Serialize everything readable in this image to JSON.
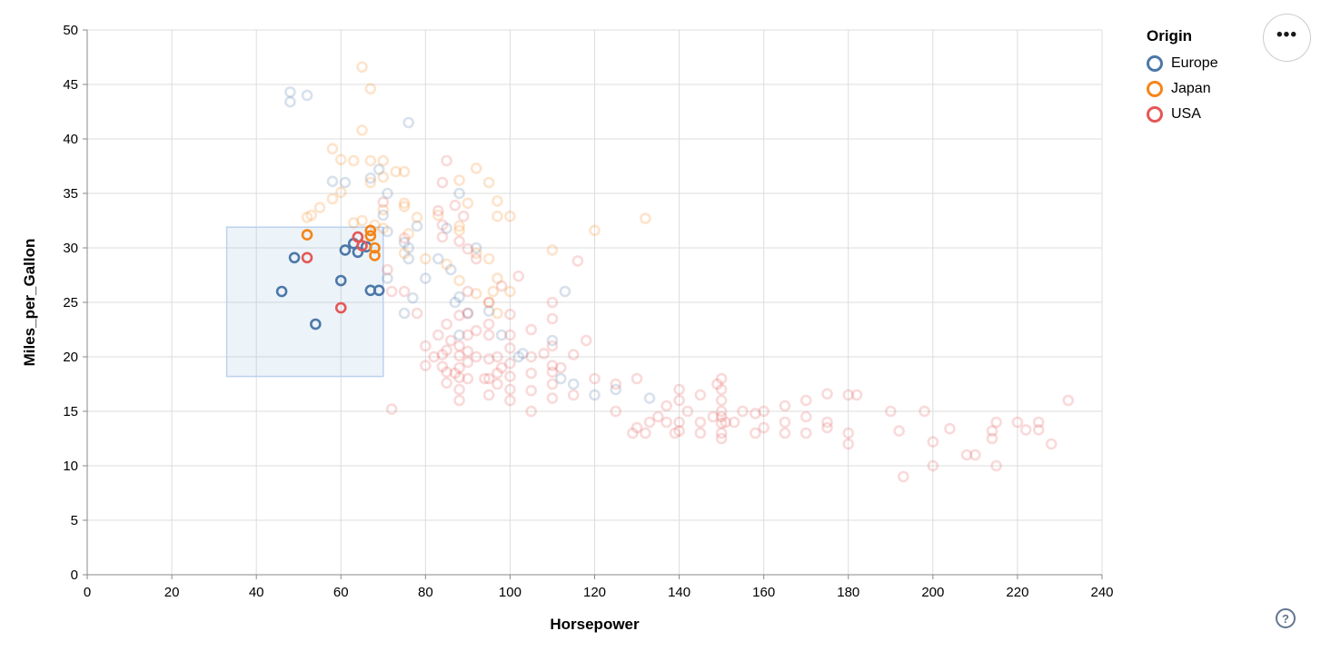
{
  "legend": {
    "title": "Origin",
    "items": [
      {
        "label": "Europe",
        "color": "#4c78a8"
      },
      {
        "label": "Japan",
        "color": "#f58518"
      },
      {
        "label": "USA",
        "color": "#e45756"
      }
    ]
  },
  "menu_button": {
    "icon": "ellipsis-icon",
    "glyph": "•••"
  },
  "help_button": {
    "icon": "question-mark-icon",
    "glyph": "?"
  },
  "chart_data": {
    "type": "scatter",
    "title": "",
    "xlabel": "Horsepower",
    "ylabel": "Miles_per_Gallon",
    "xlim": [
      0,
      240
    ],
    "ylim": [
      0,
      50
    ],
    "x_ticks": [
      0,
      20,
      40,
      60,
      80,
      100,
      120,
      140,
      160,
      180,
      200,
      220,
      240
    ],
    "y_ticks": [
      0,
      5,
      10,
      15,
      20,
      25,
      30,
      35,
      40,
      45,
      50
    ],
    "grid": true,
    "legend_position": "right",
    "point_style": {
      "shape": "open-circle",
      "radius": 5,
      "stroke_width": 2.6,
      "unselected_opacity": 0.22
    },
    "colors": {
      "Europe": "#4c78a8",
      "Japan": "#f58518",
      "USA": "#e45756",
      "grid": "#dddddd",
      "axis": "#888888"
    },
    "brush_selection": {
      "x": [
        33,
        70
      ],
      "y": [
        18.2,
        31.9
      ],
      "fill": "#6e9fd4",
      "fill_opacity": 0.13,
      "stroke": "#bdd1ee"
    },
    "series": [
      {
        "name": "Europe",
        "selected": [
          [
            46,
            26
          ],
          [
            49,
            29.1
          ],
          [
            54,
            23
          ],
          [
            60,
            27
          ],
          [
            61,
            29.8
          ],
          [
            63,
            30.4
          ],
          [
            64,
            29.6
          ],
          [
            66,
            30.1
          ],
          [
            67,
            26.1
          ],
          [
            69,
            26.1
          ]
        ],
        "unselected": [
          [
            48,
            43.4
          ],
          [
            48,
            44.3
          ],
          [
            52,
            44
          ],
          [
            76,
            41.5
          ],
          [
            58,
            36.1
          ],
          [
            61,
            36
          ],
          [
            67,
            36.4
          ],
          [
            69,
            37.2
          ],
          [
            71,
            35
          ],
          [
            88,
            35
          ],
          [
            70,
            33
          ],
          [
            71,
            31.5
          ],
          [
            75,
            30.5
          ],
          [
            76,
            30
          ],
          [
            78,
            32
          ],
          [
            83,
            29
          ],
          [
            80,
            27.2
          ],
          [
            87,
            25
          ],
          [
            88,
            25.5
          ],
          [
            71,
            27.2
          ],
          [
            75,
            24
          ],
          [
            90,
            24
          ],
          [
            86,
            28
          ],
          [
            113,
            26
          ],
          [
            98,
            22
          ],
          [
            102,
            20
          ],
          [
            112,
            18
          ],
          [
            115,
            17.5
          ],
          [
            125,
            17
          ],
          [
            120,
            16.5
          ],
          [
            133,
            16.2
          ],
          [
            103,
            20.3
          ],
          [
            110,
            21.5
          ],
          [
            77,
            25.4
          ],
          [
            88,
            22
          ],
          [
            92,
            30
          ],
          [
            85,
            31.8
          ],
          [
            95,
            24.2
          ],
          [
            76,
            29
          ]
        ]
      },
      {
        "name": "Japan",
        "selected": [
          [
            52,
            31.2
          ],
          [
            67,
            31.6
          ],
          [
            67,
            31.1
          ],
          [
            68,
            30
          ],
          [
            68,
            29.3
          ]
        ],
        "unselected": [
          [
            65,
            46.6
          ],
          [
            67,
            44.6
          ],
          [
            65,
            40.8
          ],
          [
            58,
            39.1
          ],
          [
            60,
            38.1
          ],
          [
            63,
            38
          ],
          [
            67,
            38
          ],
          [
            70,
            38
          ],
          [
            60,
            35.1
          ],
          [
            67,
            36
          ],
          [
            70,
            36.5
          ],
          [
            73,
            37
          ],
          [
            75,
            37
          ],
          [
            88,
            36.2
          ],
          [
            92,
            37.3
          ],
          [
            52,
            32.8
          ],
          [
            53,
            33
          ],
          [
            55,
            33.7
          ],
          [
            58,
            34.5
          ],
          [
            63,
            32.3
          ],
          [
            65,
            32.5
          ],
          [
            68,
            32.1
          ],
          [
            70,
            31.8
          ],
          [
            70,
            33.5
          ],
          [
            75,
            33.8
          ],
          [
            75,
            34.1
          ],
          [
            78,
            32.8
          ],
          [
            76,
            31.3
          ],
          [
            83,
            33
          ],
          [
            88,
            32
          ],
          [
            95,
            36
          ],
          [
            97,
            34.3
          ],
          [
            90,
            34.1
          ],
          [
            97,
            32.9
          ],
          [
            100,
            32.9
          ],
          [
            88,
            31.6
          ],
          [
            92,
            29.5
          ],
          [
            95,
            29
          ],
          [
            97,
            27.2
          ],
          [
            95,
            25
          ],
          [
            97,
            24
          ],
          [
            100,
            26
          ],
          [
            110,
            29.8
          ],
          [
            120,
            31.6
          ],
          [
            132,
            32.7
          ],
          [
            96,
            26
          ],
          [
            88,
            27
          ],
          [
            92,
            25.8
          ],
          [
            75,
            29.5
          ],
          [
            80,
            29
          ],
          [
            85,
            28.5
          ]
        ]
      },
      {
        "name": "USA",
        "selected": [
          [
            52,
            29.1
          ],
          [
            60,
            24.5
          ],
          [
            64,
            31
          ],
          [
            65,
            30.2
          ]
        ],
        "unselected": [
          [
            70,
            34.2
          ],
          [
            75,
            30.9
          ],
          [
            84,
            31
          ],
          [
            88,
            30.6
          ],
          [
            90,
            29.9
          ],
          [
            92,
            29
          ],
          [
            71,
            28
          ],
          [
            72,
            26
          ],
          [
            75,
            26
          ],
          [
            72,
            15.2
          ],
          [
            85,
            38
          ],
          [
            84,
            36
          ],
          [
            87,
            33.9
          ],
          [
            89,
            32.9
          ],
          [
            83,
            33.4
          ],
          [
            84,
            32.1
          ],
          [
            116,
            28.8
          ],
          [
            78,
            24
          ],
          [
            80,
            19.2
          ],
          [
            80,
            21
          ],
          [
            82,
            20
          ],
          [
            83,
            22
          ],
          [
            84,
            20.2
          ],
          [
            84,
            19.1
          ],
          [
            85,
            17.6
          ],
          [
            85,
            18.6
          ],
          [
            85,
            20.6
          ],
          [
            85,
            23
          ],
          [
            86,
            21.5
          ],
          [
            87,
            18.5
          ],
          [
            88,
            16
          ],
          [
            88,
            17
          ],
          [
            88,
            18.1
          ],
          [
            88,
            19
          ],
          [
            88,
            20.1
          ],
          [
            88,
            21
          ],
          [
            88,
            23.8
          ],
          [
            90,
            18
          ],
          [
            90,
            19.5
          ],
          [
            90,
            20.5
          ],
          [
            90,
            22
          ],
          [
            90,
            24
          ],
          [
            90,
            26
          ],
          [
            92,
            20
          ],
          [
            92,
            22.4
          ],
          [
            94,
            18
          ],
          [
            95,
            16.5
          ],
          [
            95,
            18
          ],
          [
            95,
            19.8
          ],
          [
            95,
            22
          ],
          [
            95,
            23
          ],
          [
            95,
            25
          ],
          [
            97,
            17.5
          ],
          [
            97,
            18.5
          ],
          [
            97,
            20
          ],
          [
            98,
            19
          ],
          [
            98,
            26.5
          ],
          [
            100,
            16
          ],
          [
            100,
            17
          ],
          [
            100,
            18.2
          ],
          [
            100,
            19.4
          ],
          [
            100,
            20.8
          ],
          [
            100,
            22
          ],
          [
            100,
            23.9
          ],
          [
            102,
            27.4
          ],
          [
            105,
            15
          ],
          [
            105,
            16.9
          ],
          [
            105,
            18.5
          ],
          [
            105,
            20
          ],
          [
            105,
            22.5
          ],
          [
            110,
            25
          ],
          [
            108,
            20.3
          ],
          [
            110,
            16.2
          ],
          [
            110,
            17.5
          ],
          [
            110,
            18.6
          ],
          [
            110,
            19.2
          ],
          [
            110,
            21
          ],
          [
            110,
            23.5
          ],
          [
            112,
            19
          ],
          [
            115,
            16.5
          ],
          [
            115,
            20.2
          ],
          [
            120,
            18
          ],
          [
            118,
            21.5
          ],
          [
            125,
            15
          ],
          [
            125,
            17.5
          ],
          [
            129,
            13
          ],
          [
            130,
            13.5
          ],
          [
            130,
            18
          ],
          [
            132,
            13
          ],
          [
            133,
            14
          ],
          [
            135,
            14.5
          ],
          [
            137,
            14
          ],
          [
            137,
            15.5
          ],
          [
            139,
            13
          ],
          [
            140,
            13.2
          ],
          [
            140,
            14
          ],
          [
            140,
            16
          ],
          [
            140,
            17
          ],
          [
            142,
            15
          ],
          [
            145,
            13
          ],
          [
            145,
            14
          ],
          [
            145,
            16.5
          ],
          [
            148,
            14.5
          ],
          [
            149,
            17.5
          ],
          [
            150,
            12.5
          ],
          [
            150,
            13
          ],
          [
            150,
            13.9
          ],
          [
            150,
            14.5
          ],
          [
            150,
            15
          ],
          [
            150,
            16
          ],
          [
            150,
            17
          ],
          [
            150,
            18
          ],
          [
            151,
            14
          ],
          [
            153,
            14
          ],
          [
            155,
            15
          ],
          [
            158,
            13
          ],
          [
            158,
            14.8
          ],
          [
            160,
            13.5
          ],
          [
            160,
            15
          ],
          [
            165,
            13
          ],
          [
            165,
            14
          ],
          [
            165,
            15.5
          ],
          [
            170,
            13
          ],
          [
            170,
            14.5
          ],
          [
            170,
            16
          ],
          [
            175,
            13.5
          ],
          [
            175,
            14
          ],
          [
            175,
            16.6
          ],
          [
            180,
            12
          ],
          [
            180,
            13
          ],
          [
            180,
            16.5
          ],
          [
            182,
            16.5
          ],
          [
            190,
            15
          ],
          [
            192,
            13.2
          ],
          [
            193,
            9
          ],
          [
            198,
            15
          ],
          [
            200,
            10
          ],
          [
            200,
            12.2
          ],
          [
            204,
            13.4
          ],
          [
            208,
            11
          ],
          [
            210,
            11
          ],
          [
            214,
            13.2
          ],
          [
            214,
            12.5
          ],
          [
            215,
            10
          ],
          [
            215,
            14
          ],
          [
            220,
            14
          ],
          [
            222,
            13.3
          ],
          [
            225,
            13.3
          ],
          [
            225,
            14
          ],
          [
            228,
            12
          ],
          [
            232,
            16
          ]
        ]
      }
    ]
  }
}
